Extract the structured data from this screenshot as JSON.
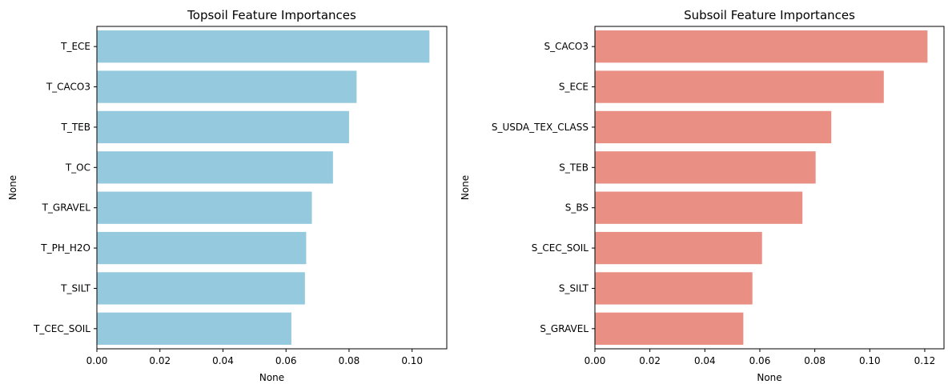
{
  "chart_data": [
    {
      "type": "bar",
      "orientation": "horizontal",
      "title": "Topsoil Feature Importances",
      "xlabel": "None",
      "ylabel": "None",
      "color": "#95c9de",
      "categories": [
        "T_ECE",
        "T_CACO3",
        "T_TEB",
        "T_OC",
        "T_GRAVEL",
        "T_PH_H2O",
        "T_SILT",
        "T_CEC_SOIL"
      ],
      "values": [
        0.1055,
        0.0824,
        0.08,
        0.0749,
        0.0682,
        0.0664,
        0.066,
        0.0617
      ],
      "xlim": [
        0,
        0.111
      ],
      "xticks": [
        "0.00",
        "0.02",
        "0.04",
        "0.06",
        "0.08",
        "0.10"
      ],
      "xtick_values": [
        0,
        0.02,
        0.04,
        0.06,
        0.08,
        0.1
      ],
      "grid": false
    },
    {
      "type": "bar",
      "orientation": "horizontal",
      "title": "Subsoil Feature Importances",
      "xlabel": "None",
      "ylabel": "None",
      "color": "#e98f83",
      "categories": [
        "S_CACO3",
        "S_ECE",
        "S_USDA_TEX_CLASS",
        "S_TEB",
        "S_BS",
        "S_CEC_SOIL",
        "S_SILT",
        "S_GRAVEL"
      ],
      "values": [
        0.121,
        0.1051,
        0.086,
        0.0803,
        0.0755,
        0.0608,
        0.0573,
        0.054
      ],
      "xlim": [
        0,
        0.127
      ],
      "xticks": [
        "0.00",
        "0.02",
        "0.04",
        "0.06",
        "0.08",
        "0.10",
        "0.12"
      ],
      "xtick_values": [
        0,
        0.02,
        0.04,
        0.06,
        0.08,
        0.1,
        0.12
      ],
      "grid": false
    }
  ]
}
